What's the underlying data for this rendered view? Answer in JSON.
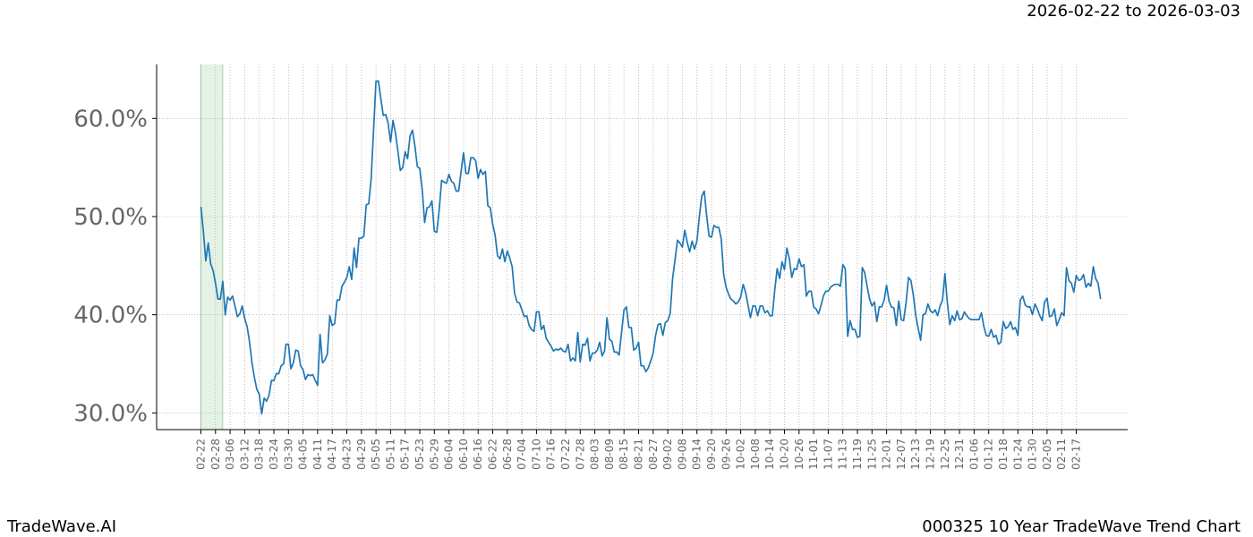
{
  "header": {
    "date_range": "2026-02-22 to 2026-03-03"
  },
  "footer": {
    "brand": "TradeWave.AI",
    "title": "000325 10 Year TradeWave Trend Chart"
  },
  "colors": {
    "line": "#1f77b4",
    "highlight": "#c8e6c9",
    "grid": "#b0b0b0",
    "tick_text": "#666666"
  },
  "chart_data": {
    "type": "line",
    "title": "000325 10 Year TradeWave Trend Chart",
    "ylim": [
      28.3,
      65.5
    ],
    "yticks": [
      30.0,
      40.0,
      50.0,
      60.0
    ],
    "ytick_labels": [
      "30.0%",
      "40.0%",
      "50.0%",
      "60.0%"
    ],
    "x_tick_labels": [
      "02-22",
      "02-28",
      "03-06",
      "03-12",
      "03-18",
      "03-24",
      "03-30",
      "04-05",
      "04-11",
      "04-17",
      "04-23",
      "04-29",
      "05-05",
      "05-11",
      "05-17",
      "05-23",
      "05-29",
      "06-04",
      "06-10",
      "06-16",
      "06-22",
      "06-28",
      "07-04",
      "07-10",
      "07-16",
      "07-22",
      "07-28",
      "08-03",
      "08-09",
      "08-15",
      "08-21",
      "08-27",
      "09-02",
      "09-08",
      "09-14",
      "09-20",
      "09-26",
      "10-02",
      "10-08",
      "10-14",
      "10-20",
      "10-26",
      "11-01",
      "11-07",
      "11-13",
      "11-19",
      "11-25",
      "12-01",
      "12-07",
      "12-13",
      "12-19",
      "12-25",
      "12-31",
      "01-06",
      "01-12",
      "01-18",
      "01-24",
      "01-30",
      "02-05",
      "02-11",
      "02-17"
    ],
    "highlight_range": [
      "02-22",
      "02-28"
    ],
    "grid": true,
    "series": [
      {
        "values": [
          51.0,
          48.5,
          45.5,
          47.3,
          45.2,
          44.5,
          43.2,
          41.6,
          41.6,
          43.4,
          40.0,
          41.8,
          41.5,
          41.9,
          40.9,
          39.8,
          40.1,
          40.9,
          39.6,
          38.8,
          37.2,
          35.1,
          33.6,
          32.4,
          31.9,
          29.9,
          31.5,
          31.2,
          31.8,
          33.3,
          33.3,
          34.0,
          34.0,
          34.8,
          35.0,
          37.0,
          37.0,
          34.5,
          35.1,
          36.4,
          36.3,
          34.8,
          34.4,
          33.4,
          33.9,
          33.8,
          33.9,
          33.3,
          32.8,
          38.0,
          35.1,
          35.4,
          36.0,
          39.9,
          38.9,
          39.1,
          41.5,
          41.5,
          42.9,
          43.3,
          43.8,
          44.9,
          43.6,
          46.8,
          44.8,
          47.8,
          47.8,
          48.0,
          51.2,
          51.3,
          53.8,
          58.8,
          63.8,
          63.8,
          62.0,
          60.3,
          60.4,
          59.5,
          57.6,
          59.8,
          58.5,
          56.7,
          54.7,
          55.0,
          56.6,
          55.9,
          58.2,
          58.8,
          57.2,
          55.1,
          54.9,
          52.8,
          49.4,
          50.9,
          51.0,
          51.6,
          48.5,
          48.4,
          50.7,
          53.7,
          53.5,
          53.4,
          54.3,
          53.6,
          53.4,
          52.6,
          52.6,
          54.6,
          56.5,
          54.4,
          54.4,
          56.0,
          56.0,
          55.7,
          53.9,
          54.8,
          54.3,
          54.6,
          51.1,
          50.9,
          49.2,
          48.1,
          46.0,
          45.7,
          46.7,
          45.4,
          46.5,
          45.8,
          44.9,
          42.2,
          41.3,
          41.2,
          40.5,
          39.8,
          39.9,
          38.9,
          38.5,
          38.3,
          40.3,
          40.3,
          38.5,
          38.9,
          37.6,
          37.2,
          36.8,
          36.3,
          36.5,
          36.4,
          36.6,
          36.3,
          36.2,
          37.0,
          35.3,
          35.6,
          35.3,
          38.2,
          35.2,
          37.0,
          36.9,
          37.6,
          35.3,
          36.1,
          36.1,
          36.4,
          37.2,
          35.8,
          36.3,
          39.7,
          37.5,
          37.3,
          36.2,
          36.2,
          35.9,
          38.2,
          40.5,
          40.8,
          38.7,
          38.7,
          36.4,
          36.6,
          37.2,
          34.8,
          34.8,
          34.2,
          34.6,
          35.3,
          36.1,
          37.9,
          39.0,
          39.1,
          37.9,
          39.2,
          39.4,
          40.1,
          43.7,
          45.6,
          47.6,
          47.3,
          46.9,
          48.6,
          47.4,
          46.4,
          47.5,
          46.7,
          47.5,
          50.0,
          52.1,
          52.6,
          50.1,
          48.0,
          47.9,
          49.1,
          48.9,
          48.9,
          47.7,
          44.1,
          42.8,
          42.1,
          41.6,
          41.4,
          41.1,
          41.3,
          41.8,
          43.1,
          42.3,
          41.0,
          39.7,
          40.9,
          40.9,
          39.9,
          40.9,
          40.9,
          40.2,
          40.4,
          39.9,
          39.9,
          42.5,
          44.7,
          43.7,
          45.4,
          44.6,
          46.8,
          45.7,
          43.8,
          44.7,
          44.6,
          45.7,
          44.9,
          45.1,
          41.9,
          42.4,
          42.4,
          40.8,
          40.6,
          40.1,
          40.9,
          41.9,
          42.4,
          42.4,
          42.8,
          43.0,
          43.1,
          43.1,
          42.9,
          45.1,
          44.7,
          37.8,
          39.4,
          38.5,
          38.5,
          37.7,
          37.8,
          44.8,
          44.3,
          42.9,
          41.6,
          40.9,
          41.3,
          39.3,
          40.8,
          40.8,
          41.5,
          43.0,
          41.4,
          40.8,
          40.7,
          38.9,
          41.4,
          39.5,
          39.4,
          41.2,
          43.8,
          43.5,
          42.0,
          39.9,
          38.6,
          37.4,
          40.0,
          40.1,
          41.1,
          40.4,
          40.2,
          40.5,
          39.9,
          40.9,
          41.5,
          44.2,
          41.2,
          39.0,
          39.9,
          39.4,
          40.4,
          39.5,
          39.6,
          40.3,
          39.9,
          39.6,
          39.5,
          39.5,
          39.5,
          39.5,
          40.2,
          38.8,
          37.9,
          37.8,
          38.5,
          37.7,
          37.9,
          37.0,
          37.2,
          39.3,
          38.6,
          38.8,
          39.3,
          38.5,
          38.7,
          37.9,
          41.5,
          41.9,
          41.0,
          40.8,
          40.8,
          40.0,
          41.1,
          40.6,
          39.9,
          39.4,
          41.3,
          41.7,
          39.8,
          39.9,
          40.6,
          38.9,
          39.5,
          40.2,
          39.9,
          44.8,
          43.5,
          43.2,
          42.3,
          44.0,
          43.5,
          43.6,
          44.1,
          42.8,
          43.2,
          42.9,
          44.9,
          43.7,
          43.2,
          41.6
        ]
      }
    ]
  }
}
